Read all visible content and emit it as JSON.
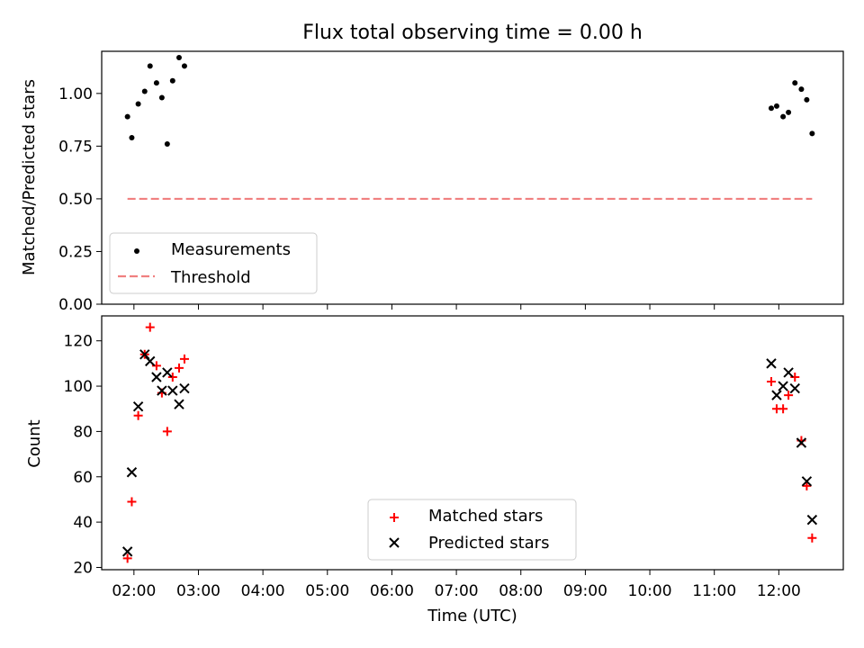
{
  "title": "Flux total observing time = 0.00 h",
  "chart_data": [
    {
      "type": "scatter",
      "ylabel": "Matched/Predicted stars",
      "ylim": [
        0,
        1.2
      ],
      "yticks": [
        "0.00",
        "0.25",
        "0.50",
        "0.75",
        "1.00"
      ],
      "yticks_values": [
        0,
        0.25,
        0.5,
        0.75,
        1.0
      ],
      "xlim": [
        "01:30",
        "13:00"
      ],
      "legend": {
        "placement": "lower-left",
        "items": [
          "Measurements",
          "Threshold"
        ]
      },
      "series": [
        {
          "name": "Measurements",
          "color": "#000000",
          "marker": "dot",
          "x": [
            "01:54",
            "01:58",
            "02:04",
            "02:10",
            "02:15",
            "02:21",
            "02:26",
            "02:31",
            "02:36",
            "02:42",
            "02:47",
            "11:53",
            "11:58",
            "12:04",
            "12:09",
            "12:15",
            "12:21",
            "12:26",
            "12:31"
          ],
          "y": [
            0.89,
            0.79,
            0.95,
            1.01,
            1.13,
            1.05,
            0.98,
            0.76,
            1.06,
            1.17,
            1.13,
            0.93,
            0.94,
            0.89,
            0.91,
            1.05,
            1.02,
            0.97,
            0.81
          ]
        },
        {
          "name": "Threshold",
          "color": "#f08080",
          "style": "dashed",
          "x": [
            "01:54",
            "12:31"
          ],
          "y": [
            0.5,
            0.5
          ]
        }
      ]
    },
    {
      "type": "scatter",
      "xlabel": "Time (UTC)",
      "ylabel": "Count",
      "ylim": [
        19,
        131
      ],
      "yticks": [
        "20",
        "40",
        "60",
        "80",
        "100",
        "120"
      ],
      "yticks_values": [
        20,
        40,
        60,
        80,
        100,
        120
      ],
      "xlim": [
        "01:30",
        "13:00"
      ],
      "xticks": [
        "02:00",
        "03:00",
        "04:00",
        "05:00",
        "06:00",
        "07:00",
        "08:00",
        "09:00",
        "10:00",
        "11:00",
        "12:00"
      ],
      "legend": {
        "placement": "lower-center",
        "items": [
          "Matched stars",
          "Predicted stars"
        ]
      },
      "series": [
        {
          "name": "Matched stars",
          "color": "#ff0000",
          "marker": "plus",
          "x": [
            "01:54",
            "01:58",
            "02:04",
            "02:10",
            "02:15",
            "02:21",
            "02:26",
            "02:31",
            "02:36",
            "02:42",
            "02:47",
            "11:53",
            "11:58",
            "12:04",
            "12:09",
            "12:15",
            "12:21",
            "12:26",
            "12:31"
          ],
          "y": [
            24,
            49,
            87,
            114,
            126,
            109,
            97,
            80,
            104,
            108,
            112,
            102,
            90,
            90,
            96,
            104,
            76,
            56,
            33
          ]
        },
        {
          "name": "Predicted stars",
          "color": "#000000",
          "marker": "x",
          "x": [
            "01:54",
            "01:58",
            "02:04",
            "02:10",
            "02:15",
            "02:21",
            "02:26",
            "02:31",
            "02:36",
            "02:42",
            "02:47",
            "11:53",
            "11:58",
            "12:04",
            "12:09",
            "12:15",
            "12:21",
            "12:26",
            "12:31"
          ],
          "y": [
            27,
            62,
            91,
            114,
            111,
            104,
            98,
            106,
            98,
            92,
            99,
            110,
            96,
            100,
            106,
            99,
            75,
            58,
            41
          ]
        }
      ]
    }
  ]
}
